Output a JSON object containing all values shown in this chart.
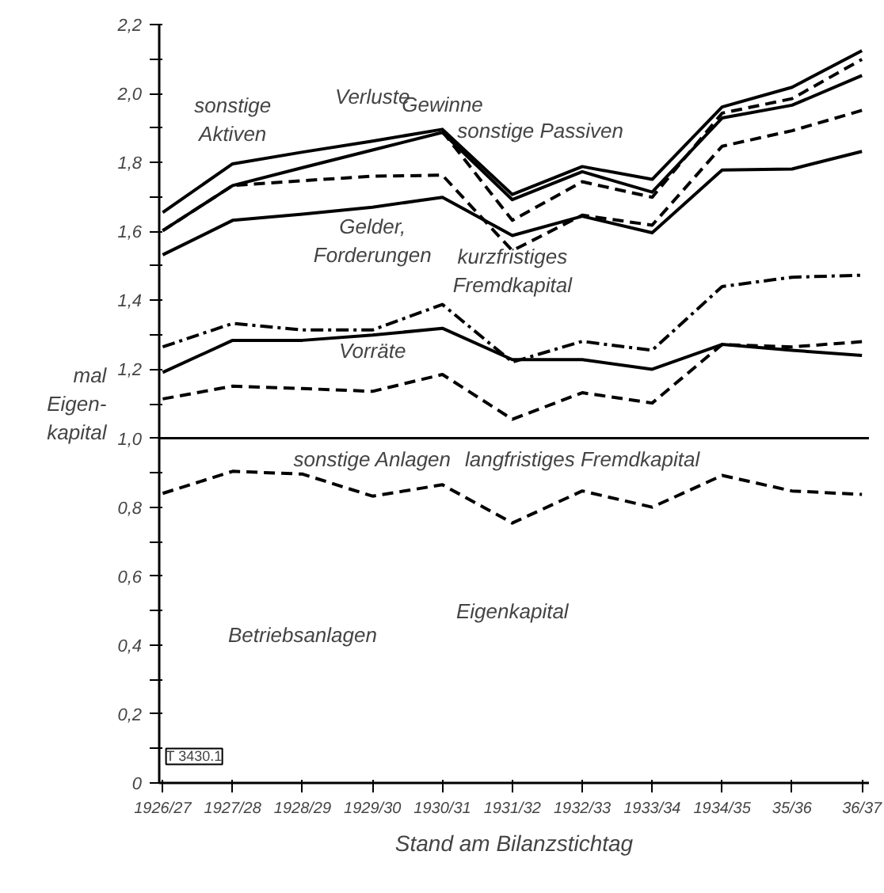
{
  "chart_data": {
    "type": "line",
    "xlabel": "Stand am Bilanzstichtag",
    "ylabel": "mal\nEigen-\nkapital",
    "categories": [
      "1926/27",
      "1927/28",
      "1928/29",
      "1929/30",
      "1930/31",
      "1931/32",
      "1932/33",
      "1933/34",
      "1934/35",
      "35/36",
      "36/37"
    ],
    "series": [
      {
        "color": "#000000",
        "line_style": "solid",
        "values": [
          1.655,
          1.796,
          1.83,
          1.862,
          1.896,
          1.707,
          1.788,
          1.751,
          1.961,
          2.018,
          2.124
        ]
      },
      {
        "color": "#000000",
        "line_style": "dashed",
        "values": [
          null,
          null,
          null,
          null,
          1.89,
          1.632,
          1.744,
          1.699,
          1.943,
          1.985,
          2.099
        ]
      },
      {
        "color": "#000000",
        "line_style": "solid",
        "values": [
          1.602,
          1.733,
          1.785,
          1.836,
          1.887,
          1.692,
          1.773,
          1.714,
          1.929,
          1.966,
          2.052
        ]
      },
      {
        "color": "#000000",
        "line_style": "dashed",
        "values": [
          1.602,
          1.733,
          1.747,
          1.76,
          1.763,
          1.544,
          1.647,
          1.618,
          1.847,
          1.892,
          1.951
        ]
      },
      {
        "color": "#000000",
        "line_style": "solid",
        "values": [
          1.532,
          1.632,
          1.65,
          1.67,
          1.699,
          1.588,
          1.644,
          1.596,
          1.778,
          1.781,
          1.832
        ]
      },
      {
        "color": "#000000",
        "line_style": "dashdot",
        "values": [
          1.265,
          1.333,
          1.314,
          1.314,
          1.388,
          1.221,
          1.281,
          1.255,
          1.44,
          1.467,
          1.473
        ]
      },
      {
        "color": "#000000",
        "line_style": "solid",
        "values": [
          1.191,
          1.284,
          1.284,
          1.299,
          1.319,
          1.228,
          1.228,
          1.2,
          1.272,
          1.255,
          1.24
        ]
      },
      {
        "color": "#000000",
        "line_style": "dashed",
        "values": [
          1.114,
          1.151,
          1.144,
          1.136,
          1.185,
          1.055,
          1.132,
          1.102,
          1.272,
          1.265,
          1.28
        ]
      },
      {
        "color": "#000000",
        "line_style": "dashed",
        "values": [
          0.84,
          0.904,
          0.896,
          0.832,
          0.865,
          0.754,
          0.847,
          0.8,
          0.892,
          0.847,
          0.837
        ]
      }
    ],
    "ylim": [
      0,
      2.2
    ],
    "yticks": [
      {
        "value": 0,
        "label": "0"
      },
      {
        "value": 0.1,
        "label": null
      },
      {
        "value": 0.2,
        "label": "0,2"
      },
      {
        "value": 0.3,
        "label": null
      },
      {
        "value": 0.4,
        "label": "0,4"
      },
      {
        "value": 0.5,
        "label": null
      },
      {
        "value": 0.6,
        "label": "0,6"
      },
      {
        "value": 0.7,
        "label": null
      },
      {
        "value": 0.8,
        "label": "0,8"
      },
      {
        "value": 0.9,
        "label": null
      },
      {
        "value": 1.0,
        "label": "1,0"
      },
      {
        "value": 1.1,
        "label": null
      },
      {
        "value": 1.2,
        "label": "1,2"
      },
      {
        "value": 1.3,
        "label": null
      },
      {
        "value": 1.4,
        "label": "1,4"
      },
      {
        "value": 1.5,
        "label": null
      },
      {
        "value": 1.6,
        "label": "1,6"
      },
      {
        "value": 1.7,
        "label": null
      },
      {
        "value": 1.8,
        "label": "1,8"
      },
      {
        "value": 1.9,
        "label": null
      },
      {
        "value": 2.0,
        "label": "2,0"
      },
      {
        "value": 2.1,
        "label": null
      },
      {
        "value": 2.2,
        "label": "2,2"
      }
    ],
    "ref_lines": [
      {
        "axis": "y",
        "value": 1.0,
        "color": "#000000",
        "line_style": "solid"
      }
    ],
    "grid": false,
    "annotations": [
      "sonstige\nAktiven",
      "Verluste",
      "Gewinne",
      "sonstige Passiven",
      "Gelder,\nForderungen",
      "kurzfristiges\nFremdkapital",
      "Vorräte",
      "sonstige Anlagen",
      "langfristiges Fremdkapital",
      "Betriebsanlagen",
      "Eigenkapital",
      "T 3430.1"
    ]
  }
}
